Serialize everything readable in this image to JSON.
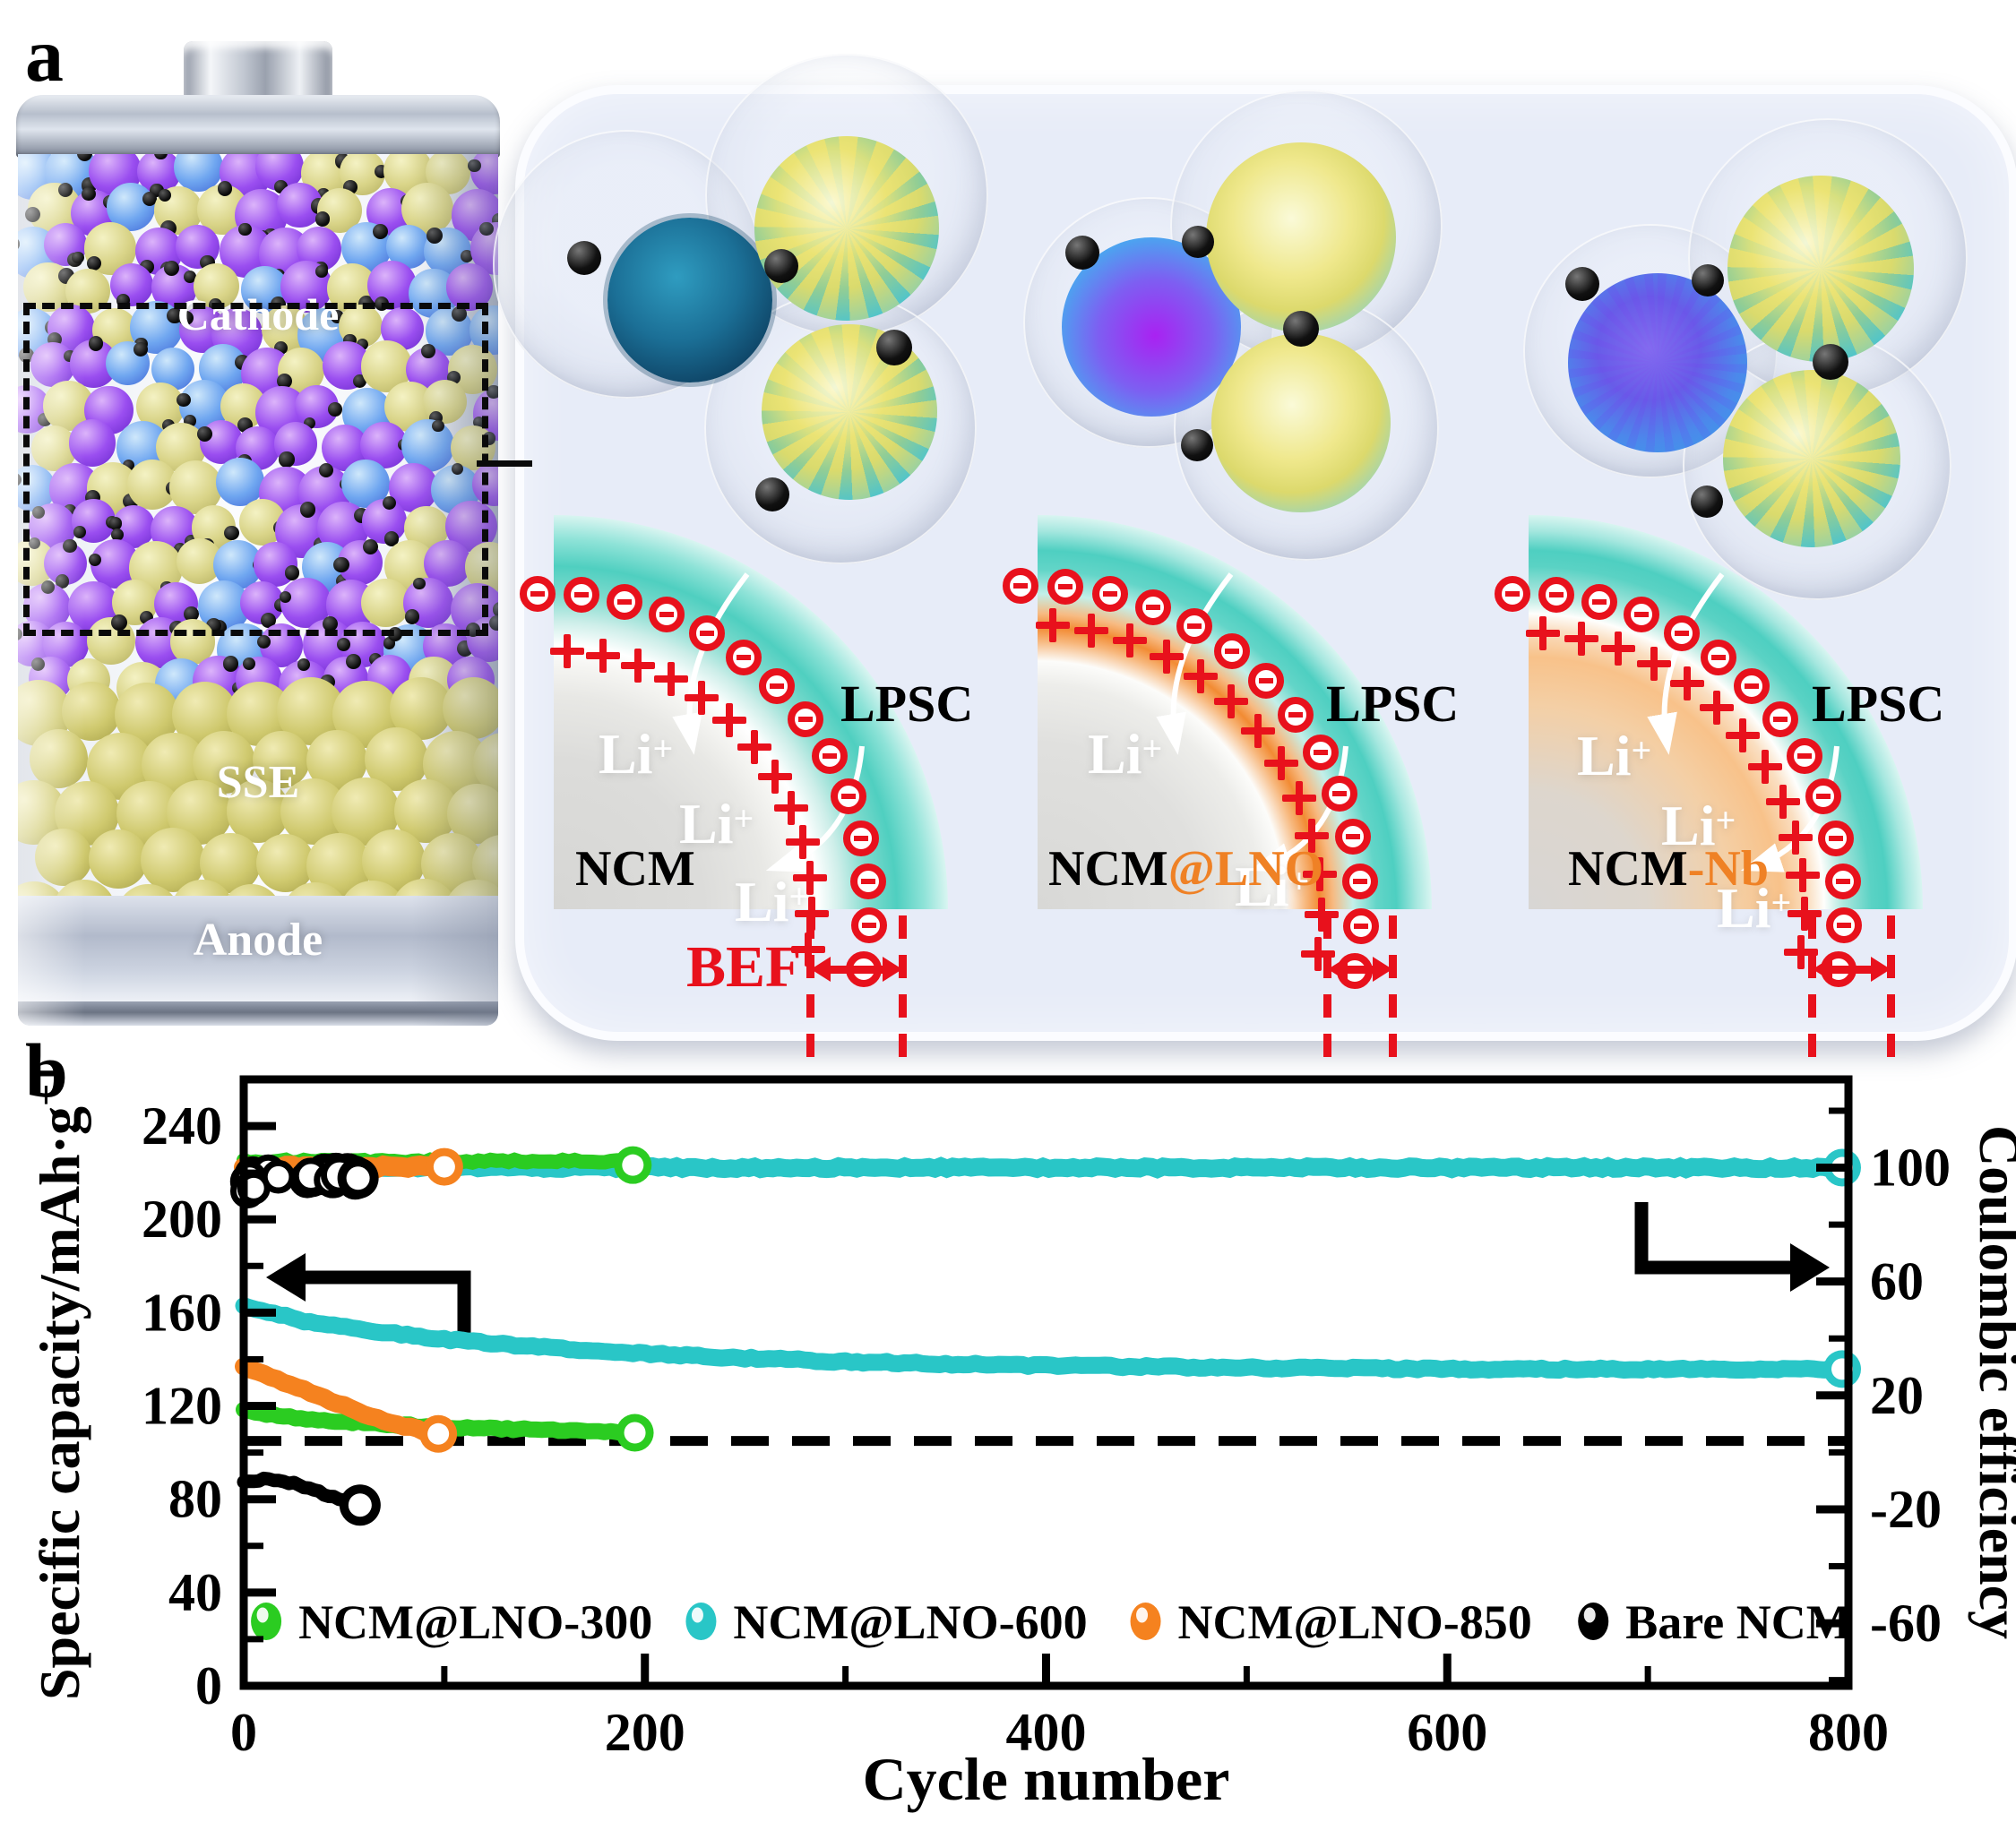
{
  "panel_a": {
    "label": "a"
  },
  "panel_b": {
    "label": "b"
  },
  "battery": {
    "cathode_label": "Cathode",
    "sse_label": "SSE",
    "anode_label": "Anode"
  },
  "schematic": {
    "li_base": "Li",
    "li_sup": "+",
    "electrolyte_label": "LPSC",
    "bef_label": "BEF",
    "diagrams": [
      {
        "core": "NCM",
        "suffix": ""
      },
      {
        "core": "NCM",
        "suffix": "@LNO"
      },
      {
        "core": "NCM",
        "suffix": "-Nb"
      }
    ],
    "colors": {
      "charge_red": "#e8111c",
      "electrolyte_teal": "#4ecfc1",
      "coating_orange": "#f28b33",
      "suffix_orange": "#ef8125"
    }
  },
  "chart_data": {
    "type": "scatter",
    "title": "",
    "xlabel": "Cycle number",
    "ylabel_left": "Specific capacity/mAh·g",
    "ylabel_left_sup": "−1",
    "ylabel_right": "Coulombic efficiency",
    "xlim": [
      0,
      800
    ],
    "xticks": [
      0,
      200,
      400,
      600,
      800
    ],
    "x_minor_ticks": [
      100,
      300,
      500,
      700
    ],
    "ylim_left": [
      0,
      260
    ],
    "yticks_left": [
      0,
      40,
      80,
      120,
      160,
      200,
      240
    ],
    "y_left_minor_ticks": [
      20,
      60,
      100,
      140,
      180,
      220,
      260
    ],
    "ylim_right": [
      -82,
      131
    ],
    "yticks_right": [
      100,
      60,
      20,
      -20,
      -60
    ],
    "y_right_minor_ticks": [
      120,
      80,
      40,
      0,
      -40,
      -80
    ],
    "grid": false,
    "dashed_guide_capacity": 105,
    "legend_position": "inside-bottom",
    "series": [
      {
        "name": "NCM@LNO-600",
        "color": "#29c6c7",
        "capacity": [
          [
            0,
            163
          ],
          [
            30,
            156.5
          ],
          [
            60,
            152.5
          ],
          [
            100,
            148.5
          ],
          [
            150,
            145
          ],
          [
            200,
            142.5
          ],
          [
            250,
            140.5
          ],
          [
            300,
            139
          ],
          [
            350,
            138
          ],
          [
            400,
            137.3
          ],
          [
            450,
            136.8
          ],
          [
            500,
            136.4
          ],
          [
            550,
            136.1
          ],
          [
            600,
            135.9
          ],
          [
            650,
            135.8
          ],
          [
            700,
            135.7
          ],
          [
            750,
            135.7
          ],
          [
            800,
            135.8
          ]
        ],
        "ce_level": 100,
        "ce_span": [
          0,
          800
        ],
        "ce_end_marker": [
          797,
          100
        ]
      },
      {
        "name": "NCM@LNO-300",
        "color": "#2bcc21",
        "capacity": [
          [
            0,
            118
          ],
          [
            20,
            115.6
          ],
          [
            40,
            113.9
          ],
          [
            60,
            112.7
          ],
          [
            80,
            111.7
          ],
          [
            100,
            111
          ],
          [
            120,
            110.4
          ],
          [
            140,
            109.9
          ],
          [
            160,
            109.4
          ],
          [
            180,
            108.9
          ],
          [
            195,
            108.5
          ]
        ],
        "ce_level": 102.3,
        "ce_span": [
          0,
          195
        ],
        "ce_end_marker": [
          194,
          100.9
        ]
      },
      {
        "name": "NCM@LNO-850",
        "color": "#f5821f",
        "capacity": [
          [
            0,
            137
          ],
          [
            10,
            133.6
          ],
          [
            20,
            130.2
          ],
          [
            30,
            126.8
          ],
          [
            40,
            123.4
          ],
          [
            50,
            120
          ],
          [
            60,
            116.8
          ],
          [
            70,
            113.9
          ],
          [
            80,
            111.4
          ],
          [
            90,
            109.2
          ],
          [
            97,
            108
          ]
        ],
        "ce_level": 100.3,
        "ce_span": [
          0,
          97
        ],
        "ce_end_marker": [
          100,
          100.3
        ]
      },
      {
        "name": "Bare NCM",
        "color": "#000000",
        "capacity": [
          [
            0,
            87
          ],
          [
            5,
            88
          ],
          [
            10,
            88.6
          ],
          [
            15,
            88.4
          ],
          [
            20,
            87.7
          ],
          [
            25,
            86.7
          ],
          [
            30,
            85.4
          ],
          [
            35,
            83.9
          ],
          [
            40,
            82.3
          ],
          [
            45,
            80.7
          ],
          [
            50,
            79.2
          ],
          [
            55,
            78.1
          ],
          [
            58,
            77.5
          ]
        ],
        "ce_scatter": {
          "x_range": [
            1,
            56
          ],
          "ce_range": [
            94.8,
            99.2
          ],
          "count": 24
        },
        "ce_end_marker": [
          57,
          96.3
        ]
      }
    ],
    "legend": [
      {
        "label": "NCM@LNO-300",
        "color": "#2bcc21"
      },
      {
        "label": "NCM@LNO-600",
        "color": "#29c6c7"
      },
      {
        "label": "NCM@LNO-850",
        "color": "#f5821f"
      },
      {
        "label": "Bare NCM",
        "color": "#000000"
      }
    ]
  }
}
